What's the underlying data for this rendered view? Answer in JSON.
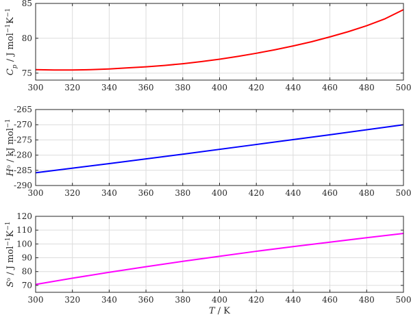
{
  "chart_data": [
    {
      "type": "line",
      "ylabel": {
        "base": "C",
        "sub": "p",
        "rest": " / J mol",
        "sup1": "−1",
        "rest2": "K",
        "sup2": "−1"
      },
      "xlim": [
        300,
        500
      ],
      "ylim": [
        74,
        85
      ],
      "xticks": [
        300,
        320,
        340,
        360,
        380,
        400,
        420,
        440,
        460,
        480,
        500
      ],
      "yticks": [
        75,
        80,
        85
      ],
      "grid": true,
      "series": [
        {
          "color": "#ff0000",
          "x": [
            300,
            310,
            320,
            330,
            340,
            350,
            360,
            370,
            380,
            390,
            400,
            410,
            420,
            430,
            440,
            450,
            460,
            470,
            480,
            490,
            500
          ],
          "y": [
            75.5,
            75.45,
            75.45,
            75.5,
            75.6,
            75.75,
            75.9,
            76.1,
            76.35,
            76.65,
            77.0,
            77.4,
            77.85,
            78.35,
            78.9,
            79.5,
            80.2,
            80.95,
            81.8,
            82.8,
            84.1
          ]
        }
      ]
    },
    {
      "type": "line",
      "ylabel": {
        "base": "H",
        "sup0": "o",
        "rest": " / kJ mol",
        "sup1": "−1"
      },
      "xlim": [
        300,
        500
      ],
      "ylim": [
        -290,
        -265
      ],
      "xticks": [
        300,
        320,
        340,
        360,
        380,
        400,
        420,
        440,
        460,
        480,
        500
      ],
      "yticks": [
        -290,
        -285,
        -280,
        -275,
        -270,
        -265
      ],
      "grid": true,
      "series": [
        {
          "color": "#0000ff",
          "x": [
            300,
            340,
            380,
            420,
            460,
            500
          ],
          "y": [
            -285.8,
            -282.8,
            -279.7,
            -276.5,
            -273.3,
            -270.0
          ]
        }
      ]
    },
    {
      "type": "line",
      "ylabel": {
        "base": "S",
        "sup0": "o",
        "rest": " / J mol",
        "sup1": "−1",
        "rest2": "K",
        "sup2": "−1"
      },
      "xlabel": {
        "base": "T",
        "rest": " / K"
      },
      "xlim": [
        300,
        500
      ],
      "ylim": [
        65,
        120
      ],
      "xticks": [
        300,
        320,
        340,
        360,
        380,
        400,
        420,
        440,
        460,
        480,
        500
      ],
      "yticks": [
        70,
        80,
        90,
        100,
        110,
        120
      ],
      "grid": true,
      "series": [
        {
          "color": "#ff00ff",
          "x": [
            300,
            320,
            340,
            360,
            380,
            400,
            420,
            440,
            460,
            480,
            500
          ],
          "y": [
            70.7,
            75.2,
            79.5,
            83.5,
            87.4,
            91.1,
            94.7,
            98.1,
            101.3,
            104.5,
            107.6
          ]
        }
      ]
    }
  ]
}
